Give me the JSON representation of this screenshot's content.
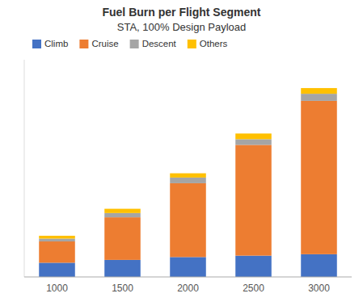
{
  "chart_data": {
    "type": "bar",
    "stacked": true,
    "title": "Fuel Burn per Flight Segment",
    "subtitle": "STA, 100% Design Payload",
    "categories": [
      "1000",
      "1500",
      "2000",
      "2500",
      "3000"
    ],
    "series": [
      {
        "name": "Climb",
        "color": "#4472C4",
        "values": [
          10,
          12,
          14,
          15,
          16
        ]
      },
      {
        "name": "Cruise",
        "color": "#ED7D31",
        "values": [
          15,
          30,
          52,
          78,
          108
        ]
      },
      {
        "name": "Descent",
        "color": "#A5A5A5",
        "values": [
          2,
          3,
          4,
          4,
          5
        ]
      },
      {
        "name": "Others",
        "color": "#FFC000",
        "values": [
          2,
          3,
          3,
          4,
          4
        ]
      }
    ],
    "ylim": [
      0,
      152.95
    ],
    "tick_labels": "x",
    "legend": "upper left"
  }
}
